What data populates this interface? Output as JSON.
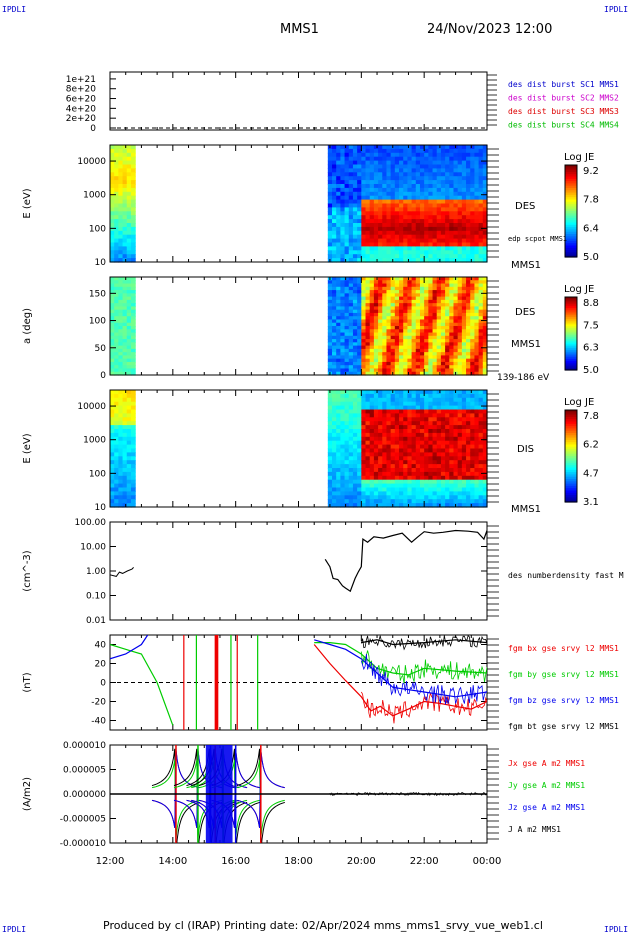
{
  "header": {
    "corner_left": "IPDLI",
    "corner_right": "IPDLI",
    "title": "MMS1",
    "datetime": "24/Nov/2023 12:00"
  },
  "footer": {
    "text": "Produced by cl (IRAP)   Printing date: 02/Apr/2024   mms_mms1_srvy_vue_web1.cl",
    "corner_left": "IPDLI",
    "corner_right": "IPDLI"
  },
  "time_axis": {
    "ticks": [
      "12:00",
      "14:00",
      "16:00",
      "18:00",
      "20:00",
      "22:00",
      "00:00"
    ],
    "range_hours": [
      12,
      24
    ]
  },
  "chart_data": [
    {
      "type": "line",
      "panel": "burst-flags",
      "ytick_labels": [
        "1e+21",
        "8e+20",
        "6e+20",
        "4e+20",
        "2e+20",
        "0"
      ],
      "yticks": [
        1e+21,
        8e+20,
        6e+20,
        4e+20,
        2e+20,
        0
      ],
      "ylim": [
        0,
        1.1e+21
      ],
      "dashed_zero_line": true,
      "series": [
        {
          "name": "des dist burst SC1 MMS1",
          "color": "#0000cc"
        },
        {
          "name": "des dist burst SC2 MMS2",
          "color": "#cc00cc"
        },
        {
          "name": "des dist burst SC3 MMS3",
          "color": "#dd0000"
        },
        {
          "name": "des dist burst SC4 MMS4",
          "color": "#00bb00"
        }
      ]
    },
    {
      "type": "heatmap",
      "panel": "des-energy",
      "ylabel": "E (eV)",
      "ytick_labels": [
        "10000",
        "1000",
        "100",
        "10"
      ],
      "yscale": "log",
      "ylim": [
        10,
        30000
      ],
      "side_labels": [
        "DES",
        "edp scpot MMS1",
        "MMS1"
      ],
      "colorbar": {
        "title": "Log JE",
        "tick_labels": [
          "9.2",
          "7.8",
          "6.4",
          "5.0"
        ],
        "range": [
          5.0,
          9.2
        ]
      },
      "data_intervals_hours": [
        [
          12.0,
          12.8
        ],
        [
          18.9,
          24.0
        ]
      ]
    },
    {
      "type": "heatmap",
      "panel": "des-pitch-angle",
      "ylabel": "a (deg)",
      "ytick_labels": [
        "150",
        "100",
        "50",
        "0"
      ],
      "ylim": [
        0,
        180
      ],
      "side_labels": [
        "DES",
        "MMS1",
        "139-186 eV"
      ],
      "colorbar": {
        "title": "Log JE",
        "tick_labels": [
          "8.8",
          "7.5",
          "6.3",
          "5.0"
        ],
        "range": [
          5.0,
          8.8
        ]
      },
      "data_intervals_hours": [
        [
          12.0,
          12.8
        ],
        [
          18.9,
          24.0
        ]
      ]
    },
    {
      "type": "heatmap",
      "panel": "dis-energy",
      "ylabel": "E (eV)",
      "ytick_labels": [
        "10000",
        "1000",
        "100",
        "10"
      ],
      "yscale": "log",
      "ylim": [
        10,
        30000
      ],
      "side_labels": [
        "DIS",
        "MMS1"
      ],
      "colorbar": {
        "title": "Log JE",
        "tick_labels": [
          "7.8",
          "6.2",
          "4.7",
          "3.1"
        ],
        "range": [
          3.1,
          7.8
        ]
      },
      "data_intervals_hours": [
        [
          12.0,
          12.8
        ],
        [
          18.9,
          24.0
        ]
      ]
    },
    {
      "type": "line",
      "panel": "density",
      "ylabel": "(cm^-3)",
      "ytick_labels": [
        "100.00",
        "10.00",
        "1.00",
        "0.10",
        "0.01"
      ],
      "yscale": "log",
      "ylim": [
        0.01,
        100
      ],
      "series": [
        {
          "name": "des numberdensity fast M",
          "color": "#000000",
          "x_hours": [
            12.0,
            12.2,
            12.3,
            12.4,
            12.55,
            12.7,
            12.75,
            18.85,
            19.0,
            19.1,
            19.25,
            19.4,
            19.5,
            19.65,
            19.8,
            19.9,
            20.0,
            20.05,
            20.2,
            20.4,
            20.7,
            21.0,
            21.3,
            21.6,
            21.8,
            22.0,
            22.3,
            22.6,
            23.0,
            23.4,
            23.7,
            23.9,
            24.0
          ],
          "y": [
            0.7,
            0.6,
            0.9,
            0.8,
            1.0,
            1.2,
            1.4,
            3.0,
            1.5,
            0.5,
            0.45,
            0.25,
            0.2,
            0.15,
            0.5,
            0.9,
            1.5,
            20,
            15,
            25,
            22,
            28,
            35,
            15,
            25,
            40,
            35,
            38,
            45,
            42,
            38,
            20,
            45
          ]
        }
      ]
    },
    {
      "type": "line",
      "panel": "fgm-b",
      "ylabel": "(nT)",
      "ytick_labels": [
        "40",
        "20",
        "0",
        "-20",
        "-40"
      ],
      "ylim": [
        -50,
        50
      ],
      "dashed_zero_line": true,
      "series": [
        {
          "name": "fgm bx gse srvy l2 MMS1",
          "color": "#ee0000",
          "x_hours": [
            18.5,
            19.0,
            19.5,
            20.0,
            20.3,
            20.6,
            21.0,
            21.5,
            22.0,
            22.5,
            23.0,
            23.5,
            24.0
          ],
          "y": [
            40,
            20,
            2,
            -15,
            -30,
            -25,
            -35,
            -28,
            -20,
            -22,
            -25,
            -28,
            -20
          ]
        },
        {
          "name": "fgm by gse srvy l2 MMS1",
          "color": "#00cc00",
          "x_hours": [
            12.0,
            12.5,
            13.0,
            13.5,
            14.0,
            18.5,
            19.0,
            19.5,
            20.0,
            20.5,
            21.0,
            21.5,
            22.0,
            23.0,
            24.0
          ],
          "y": [
            40,
            35,
            30,
            0,
            -45,
            42,
            42,
            40,
            30,
            15,
            10,
            8,
            15,
            12,
            10
          ]
        },
        {
          "name": "fgm bz gse srvy l2 MMS1",
          "color": "#0000ee",
          "x_hours": [
            12.0,
            12.5,
            13.0,
            13.2,
            18.5,
            19.0,
            19.5,
            20.0,
            20.5,
            21.0,
            22.0,
            23.0,
            24.0
          ],
          "y": [
            25,
            30,
            40,
            50,
            45,
            40,
            35,
            25,
            10,
            -5,
            -10,
            -15,
            -10
          ]
        },
        {
          "name": "fgm bt gse srvy l2 MMS1",
          "color": "#000000",
          "x_hours": [
            20.0,
            20.5,
            21.0,
            22.0,
            23.0,
            24.0
          ],
          "y": [
            42,
            45,
            40,
            42,
            45,
            42
          ]
        }
      ]
    },
    {
      "type": "line",
      "panel": "current-density",
      "ylabel": "(A/m2)",
      "ytick_labels": [
        "0.000010",
        "0.000005",
        "0.000000",
        "-0.000005",
        "-0.000010"
      ],
      "ylim": [
        -1e-05,
        1e-05
      ],
      "series": [
        {
          "name": "Jx gse A m2 MMS1",
          "color": "#ee0000"
        },
        {
          "name": "Jy gse A m2 MMS1",
          "color": "#00cc00"
        },
        {
          "name": "Jz gse A m2 MMS1",
          "color": "#0000ee"
        },
        {
          "name": "J A m2 MMS1",
          "color": "#000000"
        }
      ],
      "spike_times_hours": [
        14.1,
        14.8,
        15.2,
        15.35,
        15.6,
        16.0,
        16.8
      ]
    }
  ]
}
